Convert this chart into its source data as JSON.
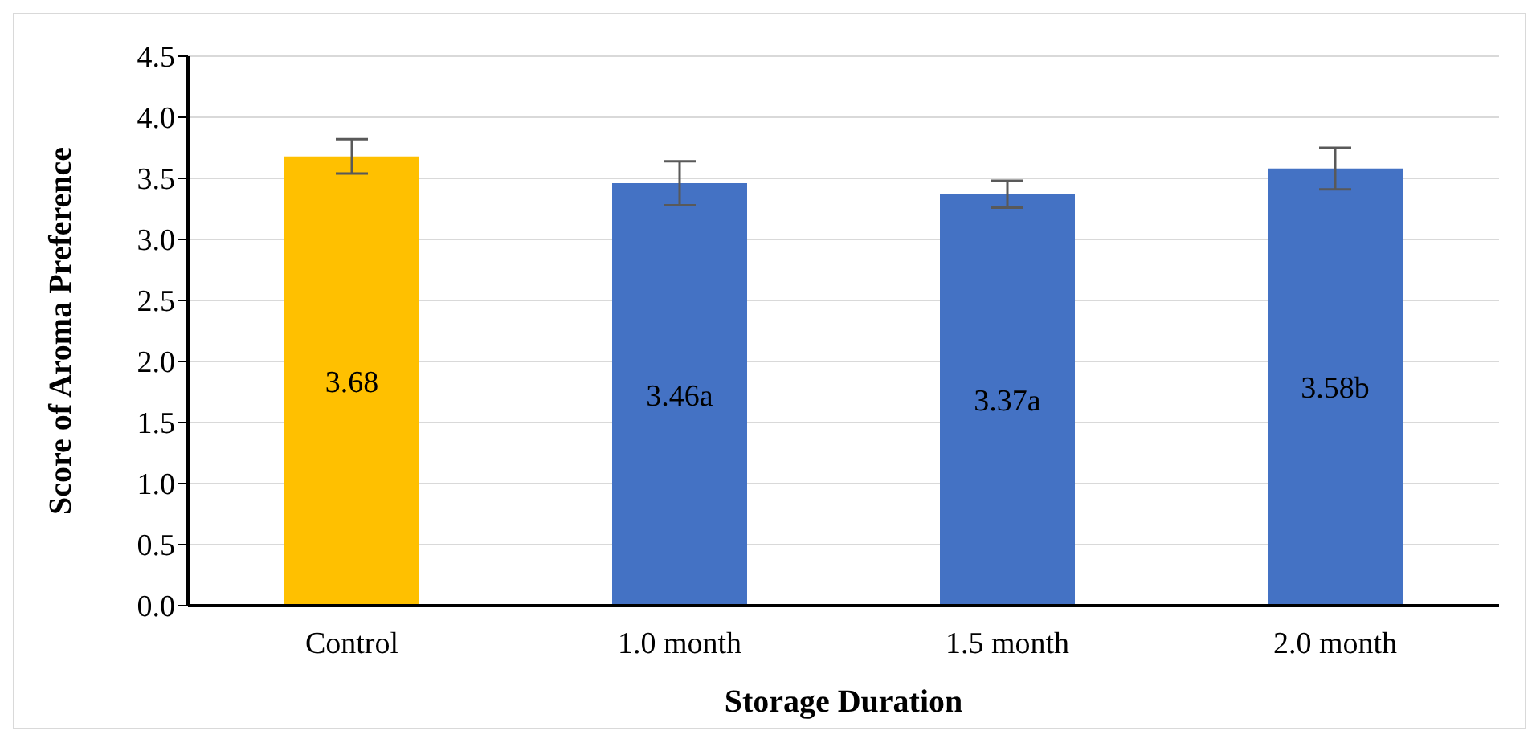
{
  "chart_data": {
    "type": "bar",
    "xlabel": "Storage Duration",
    "ylabel": "Score of Aroma Preference",
    "categories": [
      "Control",
      "1.0 month",
      "1.5 month",
      "2.0 month"
    ],
    "values": [
      3.68,
      3.46,
      3.37,
      3.58
    ],
    "colors": [
      "#ffc000",
      "#4472c4",
      "#4472c4",
      "#4472c4"
    ],
    "errors": [
      0.14,
      0.18,
      0.11,
      0.17
    ],
    "value_labels": [
      "3.68",
      "3.46a",
      "3.37a",
      "3.58b"
    ],
    "ylim": [
      0,
      4.5
    ],
    "yticks": [
      {
        "value": 0,
        "label": "0.0"
      },
      {
        "value": 0.5,
        "label": "0.5"
      },
      {
        "value": 1,
        "label": "1.0"
      },
      {
        "value": 1.5,
        "label": "1.5"
      },
      {
        "value": 2,
        "label": "2.0"
      },
      {
        "value": 2.5,
        "label": "2.5"
      },
      {
        "value": 3,
        "label": "3.0"
      },
      {
        "value": 3.5,
        "label": "3.5"
      },
      {
        "value": 4,
        "label": "4.0"
      },
      {
        "value": 4.5,
        "label": "4.5"
      }
    ],
    "grid": "y",
    "legend": false
  }
}
